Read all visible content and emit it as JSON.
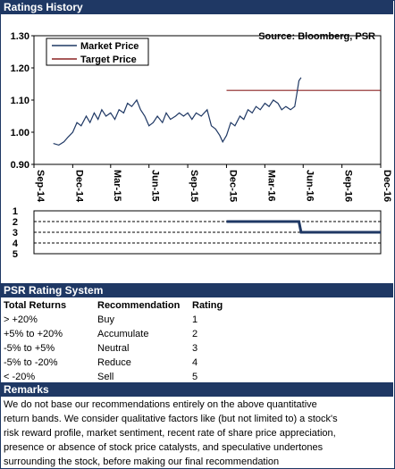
{
  "header": {
    "title": "Ratings History"
  },
  "chart_data": [
    {
      "type": "line",
      "source": "Source: Bloomberg, PSR",
      "ylim": [
        0.9,
        1.3
      ],
      "yticks": [
        "1.30",
        "1.20",
        "1.10",
        "1.00",
        "0.90"
      ],
      "xlim": [
        "2014-09-30",
        "2016-12-31"
      ],
      "xtick_labels": [
        "Sep-14",
        "Dec-14",
        "Mar-15",
        "Jun-15",
        "Sep-15",
        "Dec-15",
        "Mar-16",
        "Jun-16",
        "Sep-16",
        "Dec-16"
      ],
      "xtick_dates": [
        "2014-09-30",
        "2014-12-31",
        "2015-03-31",
        "2015-06-30",
        "2015-09-30",
        "2015-12-31",
        "2016-03-31",
        "2016-06-30",
        "2016-09-30",
        "2016-12-31"
      ],
      "legend_position": "top-left",
      "series": [
        {
          "name": "Market Price",
          "color": "#1f3864",
          "points": [
            [
              "2014-11-15",
              0.965
            ],
            [
              "2014-11-28",
              0.96
            ],
            [
              "2014-12-10",
              0.97
            ],
            [
              "2014-12-20",
              0.985
            ],
            [
              "2014-12-31",
              1.0
            ],
            [
              "2015-01-10",
              1.03
            ],
            [
              "2015-01-20",
              1.02
            ],
            [
              "2015-02-01",
              1.05
            ],
            [
              "2015-02-10",
              1.03
            ],
            [
              "2015-02-20",
              1.06
            ],
            [
              "2015-03-01",
              1.04
            ],
            [
              "2015-03-10",
              1.07
            ],
            [
              "2015-03-20",
              1.05
            ],
            [
              "2015-03-31",
              1.06
            ],
            [
              "2015-04-10",
              1.04
            ],
            [
              "2015-04-20",
              1.07
            ],
            [
              "2015-05-01",
              1.06
            ],
            [
              "2015-05-10",
              1.09
            ],
            [
              "2015-05-20",
              1.08
            ],
            [
              "2015-06-01",
              1.1
            ],
            [
              "2015-06-10",
              1.07
            ],
            [
              "2015-06-20",
              1.05
            ],
            [
              "2015-06-30",
              1.02
            ],
            [
              "2015-07-10",
              1.03
            ],
            [
              "2015-07-20",
              1.05
            ],
            [
              "2015-08-01",
              1.03
            ],
            [
              "2015-08-10",
              1.06
            ],
            [
              "2015-08-20",
              1.04
            ],
            [
              "2015-09-01",
              1.05
            ],
            [
              "2015-09-10",
              1.06
            ],
            [
              "2015-09-20",
              1.05
            ],
            [
              "2015-09-30",
              1.06
            ],
            [
              "2015-10-10",
              1.04
            ],
            [
              "2015-10-20",
              1.06
            ],
            [
              "2015-11-01",
              1.05
            ],
            [
              "2015-11-15",
              1.07
            ],
            [
              "2015-11-25",
              1.02
            ],
            [
              "2015-12-05",
              1.01
            ],
            [
              "2015-12-15",
              0.99
            ],
            [
              "2015-12-22",
              0.97
            ],
            [
              "2015-12-31",
              0.99
            ],
            [
              "2016-01-10",
              1.03
            ],
            [
              "2016-01-20",
              1.02
            ],
            [
              "2016-02-01",
              1.05
            ],
            [
              "2016-02-10",
              1.04
            ],
            [
              "2016-02-20",
              1.07
            ],
            [
              "2016-03-01",
              1.06
            ],
            [
              "2016-03-10",
              1.08
            ],
            [
              "2016-03-20",
              1.07
            ],
            [
              "2016-03-31",
              1.09
            ],
            [
              "2016-04-10",
              1.08
            ],
            [
              "2016-04-20",
              1.1
            ],
            [
              "2016-05-01",
              1.09
            ],
            [
              "2016-05-10",
              1.07
            ],
            [
              "2016-05-20",
              1.08
            ],
            [
              "2016-05-31",
              1.07
            ],
            [
              "2016-06-10",
              1.08
            ],
            [
              "2016-06-15",
              1.12
            ],
            [
              "2016-06-20",
              1.16
            ],
            [
              "2016-06-25",
              1.17
            ]
          ]
        },
        {
          "name": "Target Price",
          "color": "#8b2323",
          "points": [
            [
              "2015-12-31",
              1.13
            ],
            [
              "2016-12-31",
              1.13
            ]
          ]
        }
      ]
    },
    {
      "type": "line",
      "ylim": [
        1,
        5
      ],
      "yticks": [
        "1",
        "2",
        "3",
        "4",
        "5"
      ],
      "y_inverted": true,
      "xlim": [
        "2014-09-30",
        "2016-12-31"
      ],
      "series": [
        {
          "name": "Rating",
          "color": "#1f3864",
          "points": [
            [
              "2015-12-31",
              2
            ],
            [
              "2016-06-20",
              2
            ],
            [
              "2016-06-25",
              3
            ],
            [
              "2016-12-31",
              3
            ]
          ]
        }
      ]
    }
  ],
  "rating_system": {
    "title": "PSR Rating System",
    "headers": [
      "Total Returns",
      "Recommendation",
      "Rating"
    ],
    "rows": [
      [
        "> +20%",
        "Buy",
        "1"
      ],
      [
        "+5% to +20%",
        "Accumulate",
        "2"
      ],
      [
        "-5% to +5%",
        "Neutral",
        "3"
      ],
      [
        "-5% to -20%",
        "Reduce",
        "4"
      ],
      [
        "< -20%",
        "Sell",
        "5"
      ]
    ]
  },
  "remarks": {
    "title": "Remarks",
    "lines": [
      "We do not base our recommendations entirely on the  above quantitative",
      "return bands.  We consider qualitative factors like (but not limited to) a stock's",
      "risk reward profile, market sentiment, recent rate of share price appreciation,",
      "presence or absence of stock price catalysts, and speculative undertones",
      "surrounding the stock, before making our final recommendation"
    ]
  }
}
